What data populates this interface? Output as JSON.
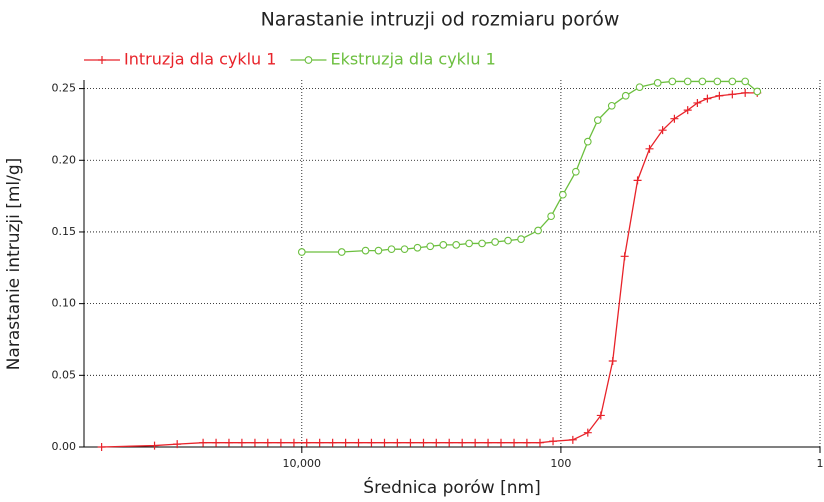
{
  "chart_data": {
    "type": "line",
    "title": "Narastanie intruzji od rozmiaru porów",
    "xlabel": "Średnica porów [nm]",
    "ylabel": "Narastanie intruzji [ml/g]",
    "xscale": "log",
    "xlim": [
      480000,
      1
    ],
    "xticks": [
      {
        "value": 10000,
        "label": "10,000"
      },
      100,
      1
    ],
    "ylim": [
      0,
      0.256
    ],
    "yticks": [
      {
        "value": 0,
        "label": "0.00"
      },
      {
        "value": 0.05,
        "label": "0.05"
      },
      {
        "value": 0.1,
        "label": "0.10"
      },
      {
        "value": 0.15,
        "label": "0.15"
      },
      {
        "value": 0.2,
        "label": "0.20"
      },
      {
        "value": 0.25,
        "label": "0.25"
      }
    ],
    "grid": true,
    "legend": "top-left",
    "series": [
      {
        "name": "Intruzja dla cyklu 1",
        "color": "#e8232a",
        "marker": "plus",
        "x": [
          351000,
          137000,
          91600,
          57800,
          45900,
          36500,
          29000,
          23000,
          18300,
          14500,
          11500,
          9160,
          7280,
          5780,
          4590,
          3650,
          2900,
          2300,
          1830,
          1450,
          1150,
          916,
          728,
          578,
          459,
          365,
          290,
          230,
          183,
          145,
          115,
          80.9,
          62.0,
          49.2,
          39.8,
          32.2,
          25.6,
          20.7,
          16.4,
          13.3,
          10.5,
          8.84,
          7.4,
          5.98,
          4.75,
          3.78,
          3.05
        ],
        "values": [
          0,
          0.001,
          0.002,
          0.003,
          0.003,
          0.003,
          0.003,
          0.003,
          0.003,
          0.003,
          0.003,
          0.003,
          0.003,
          0.003,
          0.003,
          0.003,
          0.003,
          0.003,
          0.003,
          0.003,
          0.003,
          0.003,
          0.003,
          0.003,
          0.003,
          0.003,
          0.003,
          0.003,
          0.003,
          0.003,
          0.004,
          0.005,
          0.01,
          0.022,
          0.06,
          0.133,
          0.186,
          0.208,
          0.221,
          0.229,
          0.235,
          0.24,
          0.243,
          0.245,
          0.246,
          0.247,
          0.247
        ]
      },
      {
        "name": "Ekstruzja dla cyklu 1",
        "color": "#6cbf3f",
        "marker": "circle",
        "x": [
          10000,
          4920,
          3220,
          2560,
          2030,
          1610,
          1280,
          1020,
          809,
          643,
          511,
          406,
          322,
          256,
          203,
          150,
          119,
          96.6,
          76.7,
          62.0,
          51.9,
          40.5,
          31.6,
          24.7,
          17.9,
          13.8,
          10.5,
          8.09,
          6.2,
          4.75,
          3.78,
          3.05
        ],
        "values": [
          0.136,
          0.136,
          0.137,
          0.137,
          0.138,
          0.138,
          0.139,
          0.14,
          0.141,
          0.141,
          0.142,
          0.142,
          0.143,
          0.144,
          0.145,
          0.151,
          0.161,
          0.176,
          0.192,
          0.213,
          0.228,
          0.238,
          0.245,
          0.251,
          0.254,
          0.255,
          0.255,
          0.255,
          0.255,
          0.255,
          0.255,
          0.248
        ]
      }
    ]
  }
}
